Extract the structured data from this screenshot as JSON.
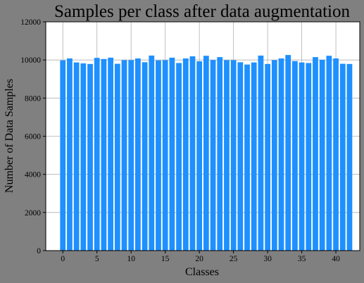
{
  "chart_data": {
    "type": "bar",
    "title": "Samples per class after data augmentation",
    "xlabel": "Classes",
    "ylabel": "Number of Data Samples",
    "xlim": [
      -2.5,
      43.5
    ],
    "ylim": [
      0,
      12000
    ],
    "xticks": [
      0,
      5,
      10,
      15,
      20,
      25,
      30,
      35,
      40
    ],
    "yticks": [
      0,
      2000,
      4000,
      6000,
      8000,
      10000,
      12000
    ],
    "grid": true,
    "bar_color": "#1e90ff",
    "categories": [
      0,
      1,
      2,
      3,
      4,
      5,
      6,
      7,
      8,
      9,
      10,
      11,
      12,
      13,
      14,
      15,
      16,
      17,
      18,
      19,
      20,
      21,
      22,
      23,
      24,
      25,
      26,
      27,
      28,
      29,
      30,
      31,
      32,
      33,
      34,
      35,
      36,
      37,
      38,
      39,
      40,
      41,
      42
    ],
    "values": [
      9980,
      10080,
      9870,
      9820,
      9790,
      10110,
      10050,
      10120,
      9800,
      9990,
      9990,
      10080,
      9880,
      10230,
      9980,
      9990,
      10120,
      9840,
      10080,
      10190,
      9930,
      10220,
      10000,
      10150,
      9990,
      9990,
      9880,
      9760,
      9870,
      10230,
      9790,
      9990,
      10080,
      10260,
      9940,
      9870,
      9840,
      10150,
      10010,
      10220,
      10080,
      9800,
      9790
    ]
  },
  "colors": {
    "figure_bg": "#808080",
    "axes_bg": "#ffffff",
    "grid": "#b0b0b0"
  }
}
